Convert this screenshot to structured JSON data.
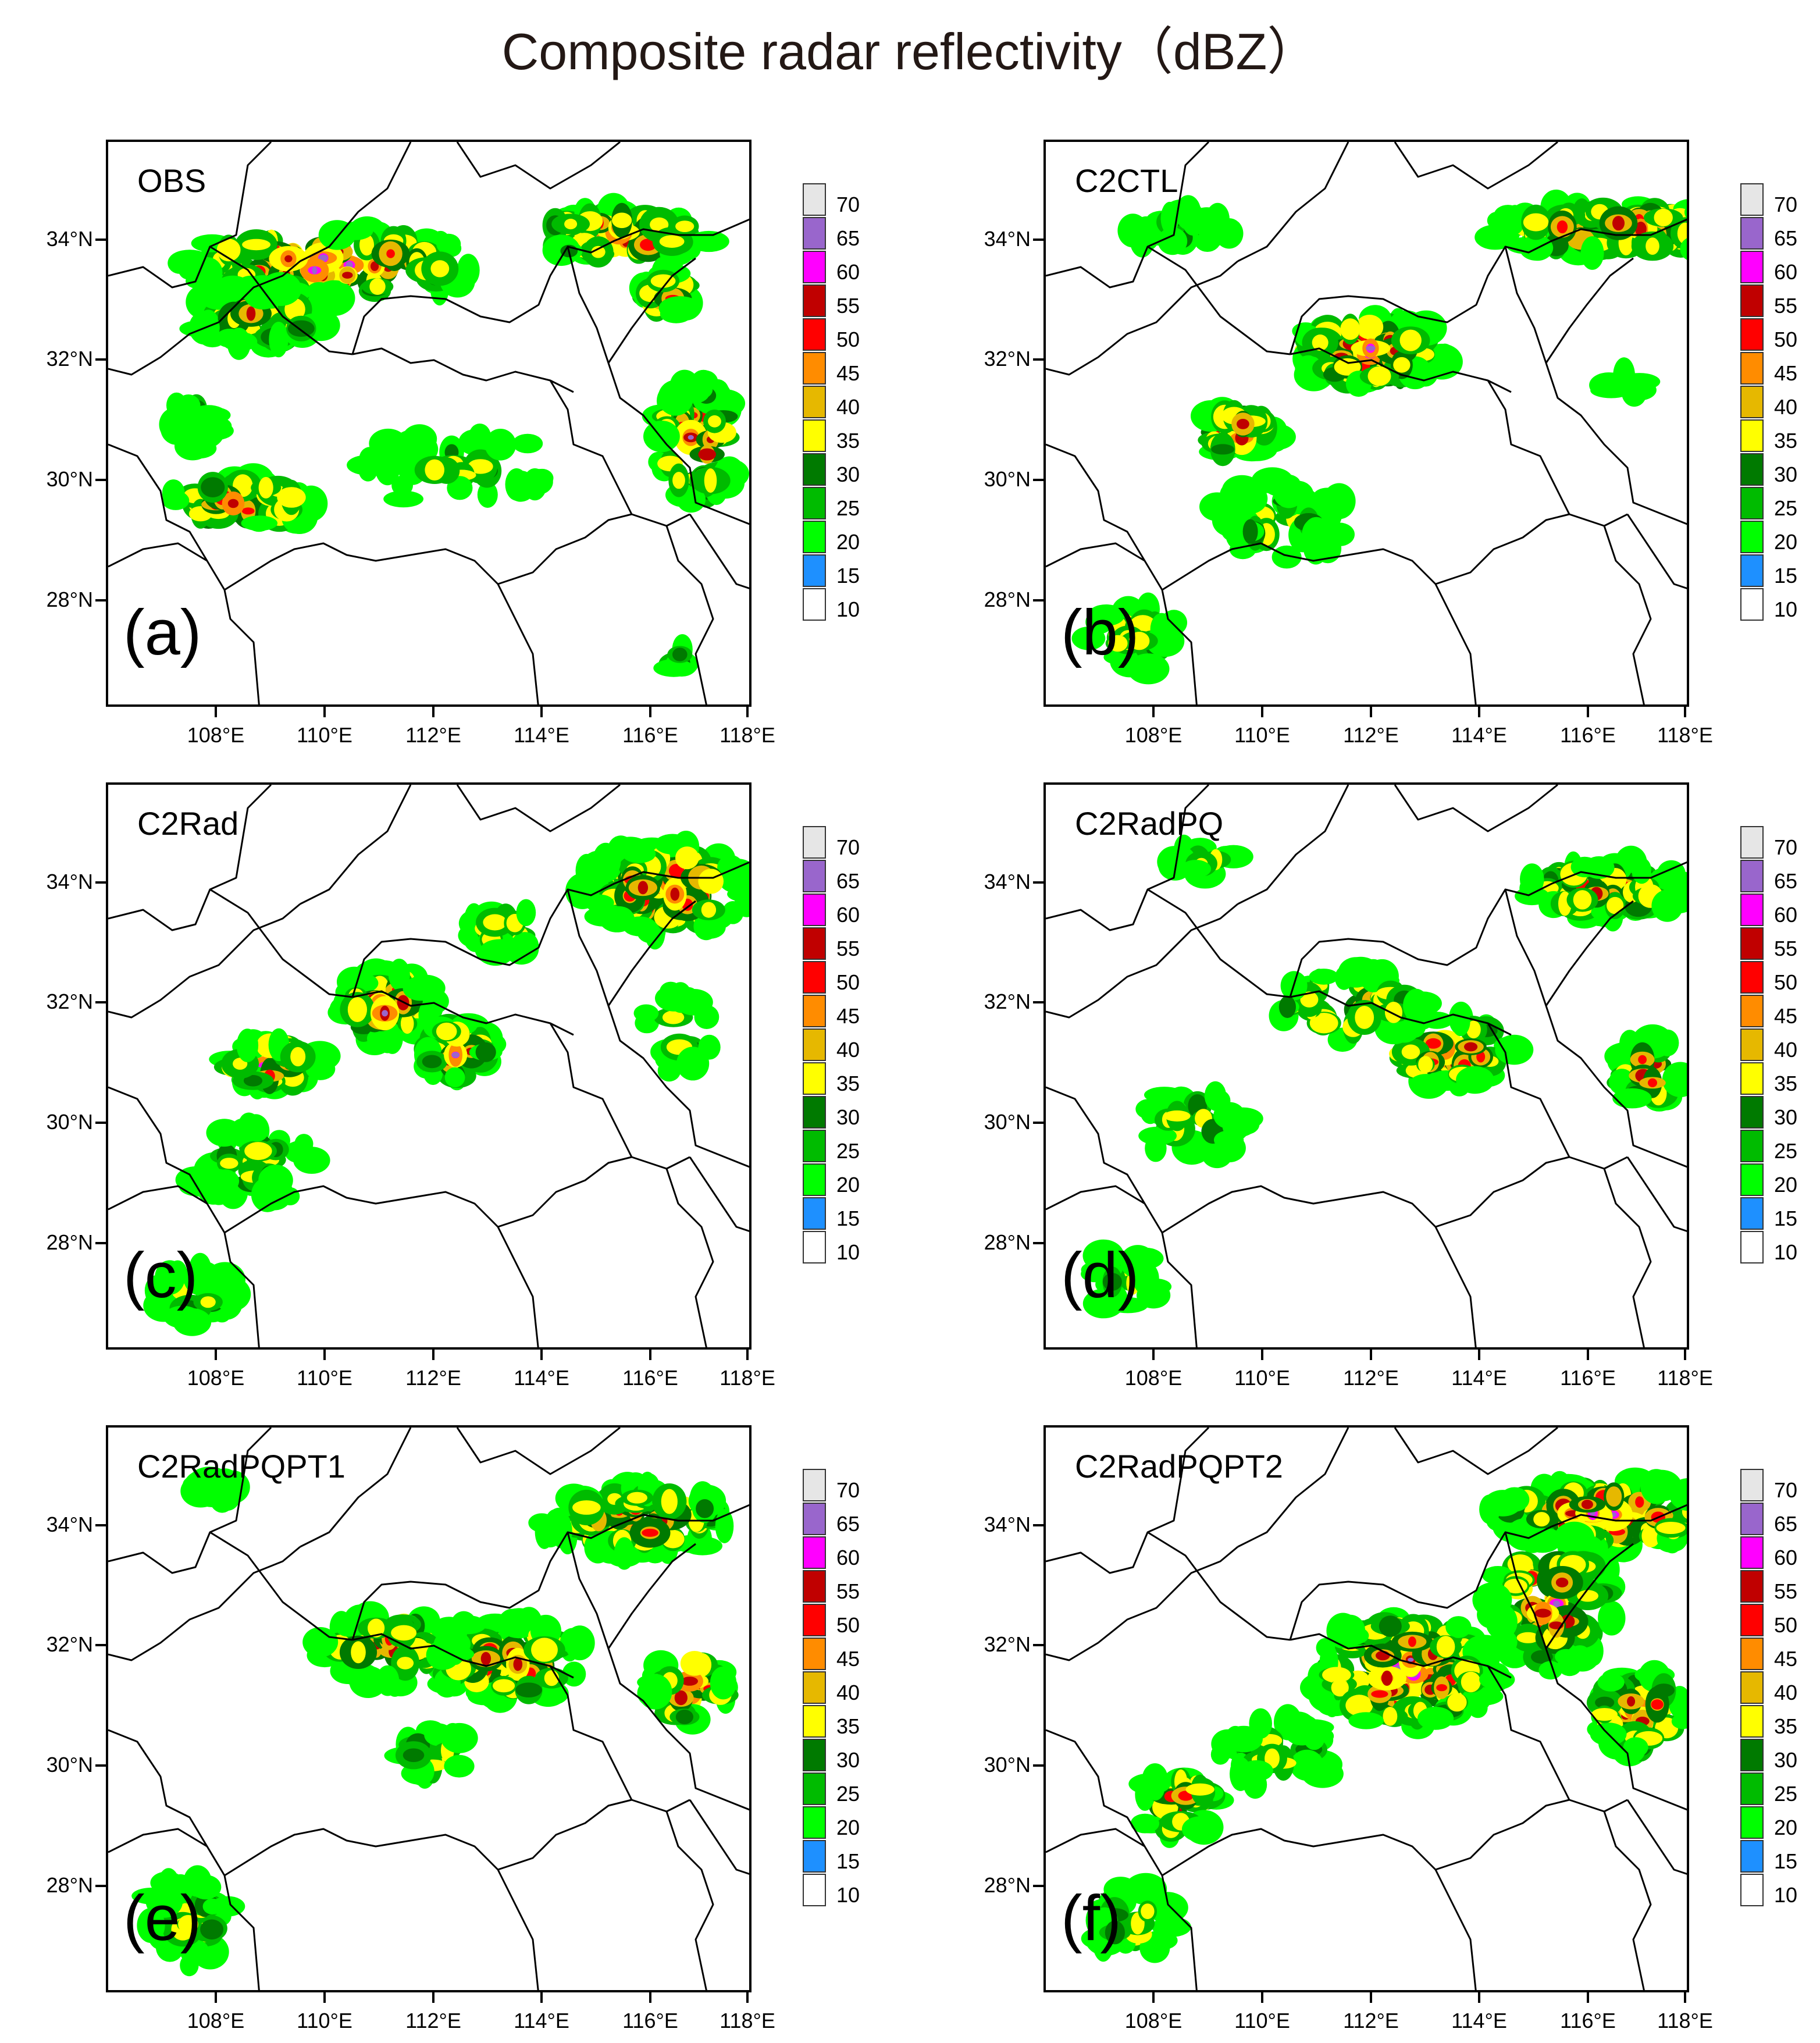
{
  "title": "Composite radar reflectivity（dBZ）",
  "lat_labels": [
    "34°N",
    "32°N",
    "30°N",
    "28°N"
  ],
  "lon_labels": [
    "108°E",
    "110°E",
    "112°E",
    "114°E",
    "116°E",
    "118°E"
  ],
  "colorbar": {
    "levels": [
      "70",
      "65",
      "60",
      "55",
      "50",
      "45",
      "40",
      "35",
      "30",
      "25",
      "20",
      "15",
      "10"
    ],
    "colors": [
      "#e6e6e6",
      "#9966cc",
      "#ff00ff",
      "#c00000",
      "#ff0000",
      "#ff8c00",
      "#e6b800",
      "#ffff00",
      "#007a00",
      "#00bb00",
      "#00ff00",
      "#1e90ff",
      "#ffffff"
    ]
  },
  "panels": [
    {
      "name": "OBS",
      "letter": "(a)"
    },
    {
      "name": "C2CTL",
      "letter": "(b)"
    },
    {
      "name": "C2Rad",
      "letter": "(c)"
    },
    {
      "name": "C2RadPQ",
      "letter": "(d)"
    },
    {
      "name": "C2RadPQPT1",
      "letter": "(e)"
    },
    {
      "name": "C2RadPQPT2",
      "letter": "(f)"
    }
  ]
}
